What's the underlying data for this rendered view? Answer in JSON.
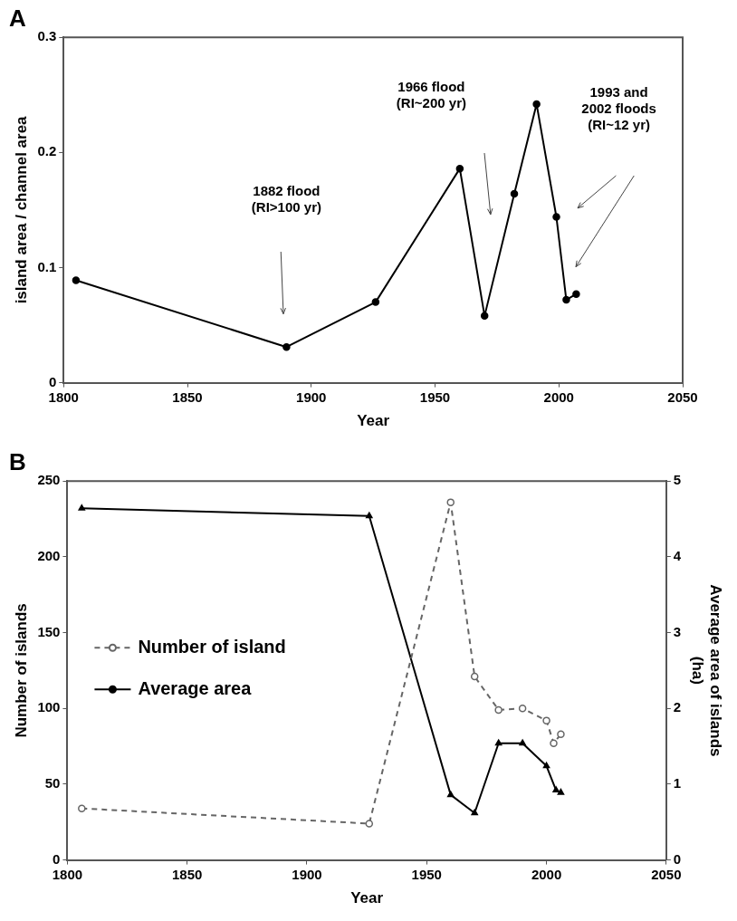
{
  "chart_data": [
    {
      "type": "line",
      "title": "A",
      "xlabel": "Year",
      "ylabel": "island area / channel area",
      "xlim": [
        1800,
        2050
      ],
      "xticks": [
        1800,
        1850,
        1900,
        1950,
        2000,
        2050
      ],
      "ylim": [
        0,
        0.3
      ],
      "yticks": [
        0,
        0.1,
        0.2,
        0.3
      ],
      "grid": false,
      "legend": false,
      "marker": "circle",
      "line_style": "solid",
      "series": [
        {
          "color": "#000000",
          "x": [
            1805,
            1890,
            1926,
            1960,
            1970,
            1982,
            1991,
            1999,
            2003,
            2007
          ],
          "values": [
            0.089,
            0.031,
            0.07,
            0.186,
            0.058,
            0.164,
            0.242,
            0.144,
            0.072,
            0.077
          ]
        }
      ],
      "annotations": [
        "1882 flood\n(RI>100 yr)",
        "1966 flood\n(RI~200 yr)",
        "1993 and\n2002 floods\n(RI~12 yr)"
      ]
    },
    {
      "type": "line",
      "title": "B",
      "xlabel": "Year",
      "ylabel": "Number of islands",
      "y2label": "Average area of islands\n(ha)",
      "xlim": [
        1800,
        2050
      ],
      "xticks": [
        1800,
        1850,
        1900,
        1950,
        2000,
        2050
      ],
      "ylim": [
        0,
        250
      ],
      "yticks": [
        0,
        50,
        100,
        150,
        200,
        250
      ],
      "y2lim": [
        0,
        5
      ],
      "y2ticks": [
        0,
        1,
        2,
        3,
        4,
        5
      ],
      "grid": false,
      "legend": "left",
      "series": [
        {
          "name": "Number of island",
          "color": "#666666",
          "marker": "circle",
          "line_style": "dashed",
          "x": [
            1806,
            1926,
            1960,
            1970,
            1980,
            1990,
            2000,
            2003,
            2006
          ],
          "values": [
            34,
            24,
            236,
            121,
            99,
            100,
            92,
            77,
            83
          ]
        },
        {
          "name": "Average area",
          "color": "#000000",
          "marker": "triangle",
          "line_style": "solid",
          "axis": "y2",
          "x": [
            1806,
            1926,
            1960,
            1970,
            1980,
            1990,
            2000,
            2004,
            2006
          ],
          "values": [
            4.64,
            4.54,
            0.86,
            0.62,
            1.54,
            1.54,
            1.24,
            0.92,
            0.89
          ]
        }
      ]
    }
  ]
}
